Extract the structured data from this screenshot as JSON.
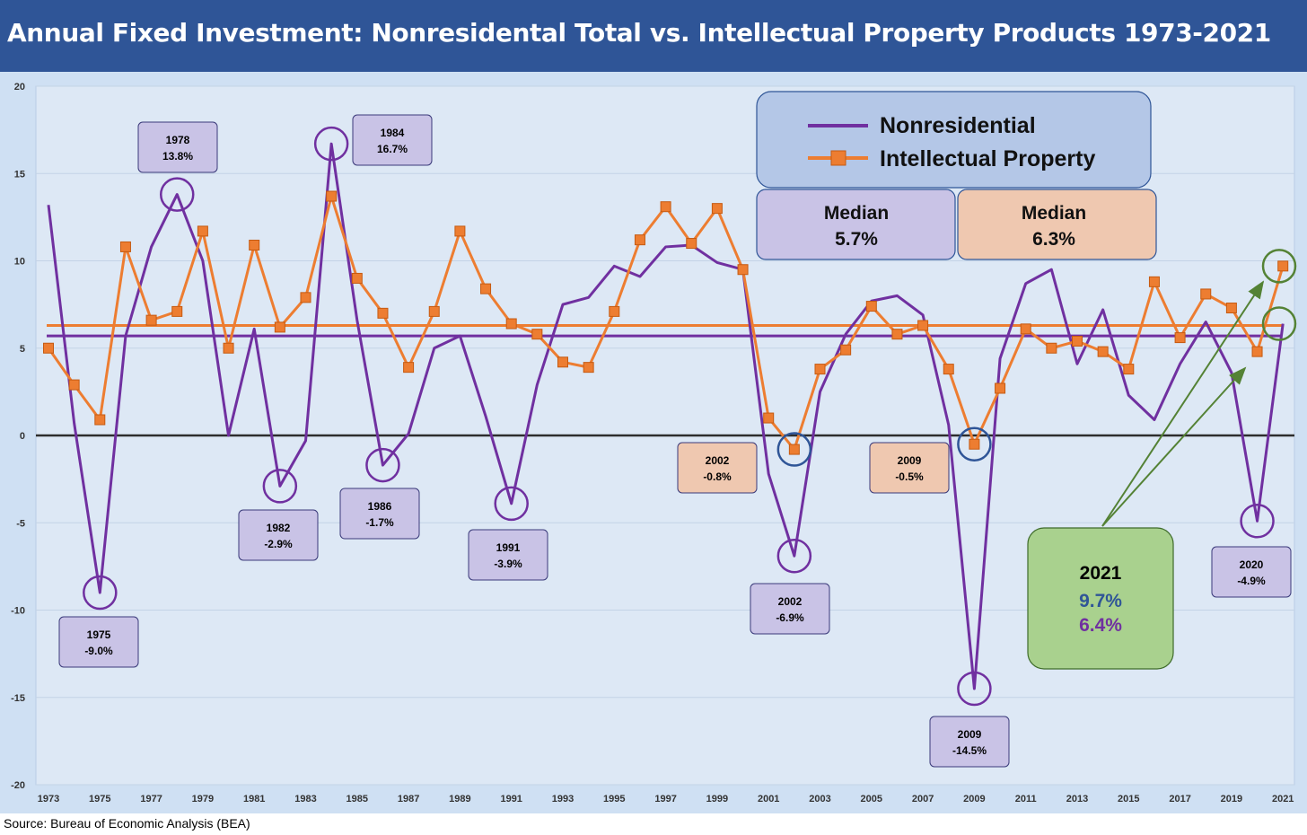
{
  "title": "Annual Fixed Investment: Nonresidental Total vs. Intellectual Property Products 1973-2021",
  "source": "Source: Bureau of Economic Analysis (BEA)",
  "chart_data": {
    "type": "line",
    "title": "Annual Fixed Investment: Nonresidental Total vs. Intellectual Property Products 1973-2021",
    "xlabel": "",
    "ylabel": "",
    "x": [
      1973,
      1974,
      1975,
      1976,
      1977,
      1978,
      1979,
      1980,
      1981,
      1982,
      1983,
      1984,
      1985,
      1986,
      1987,
      1988,
      1989,
      1990,
      1991,
      1992,
      1993,
      1994,
      1995,
      1996,
      1997,
      1998,
      1999,
      2000,
      2001,
      2002,
      2003,
      2004,
      2005,
      2006,
      2007,
      2008,
      2009,
      2010,
      2011,
      2012,
      2013,
      2014,
      2015,
      2016,
      2017,
      2018,
      2019,
      2020,
      2021
    ],
    "x_tick_labels": [
      "1973",
      "1975",
      "1977",
      "1979",
      "1981",
      "1983",
      "1985",
      "1987",
      "1989",
      "1991",
      "1993",
      "1995",
      "1997",
      "1999",
      "2001",
      "2003",
      "2005",
      "2007",
      "2009",
      "2011",
      "2013",
      "2015",
      "2017",
      "2019",
      "2021"
    ],
    "ylim": [
      -20,
      20
    ],
    "y_ticks": [
      -20,
      -15,
      -10,
      -5,
      0,
      5,
      10,
      15,
      20
    ],
    "y_tick_labels": [
      "-20",
      "-15",
      "-10",
      "-5",
      "0",
      "5",
      "10",
      "15",
      "20"
    ],
    "grid": true,
    "series": [
      {
        "name": "Nonresidential",
        "color": "#7030a0",
        "marker": "none",
        "values": [
          13.2,
          0.7,
          -9.0,
          5.7,
          10.8,
          13.8,
          10.0,
          0.0,
          6.1,
          -2.9,
          -0.3,
          16.7,
          6.6,
          -1.7,
          0.1,
          5.0,
          5.7,
          1.1,
          -3.9,
          2.9,
          7.5,
          7.9,
          9.7,
          9.1,
          10.8,
          10.9,
          9.9,
          9.5,
          -2.2,
          -6.9,
          2.5,
          5.8,
          7.7,
          8.0,
          6.9,
          0.6,
          -14.5,
          4.4,
          8.7,
          9.5,
          4.1,
          7.2,
          2.3,
          0.9,
          4.1,
          6.5,
          3.6,
          -4.9,
          6.4
        ]
      },
      {
        "name": "Intellectual Property",
        "color": "#ed7d31",
        "marker": "square",
        "values": [
          5.0,
          2.9,
          0.9,
          10.8,
          6.6,
          7.1,
          11.7,
          5.0,
          10.9,
          6.2,
          7.9,
          13.7,
          9.0,
          7.0,
          3.9,
          7.1,
          11.7,
          8.4,
          6.4,
          5.8,
          4.2,
          3.9,
          7.1,
          11.2,
          13.1,
          11.0,
          13.0,
          9.5,
          1.0,
          -0.8,
          3.8,
          4.9,
          7.4,
          5.8,
          6.3,
          3.8,
          -0.5,
          2.7,
          6.1,
          5.0,
          5.4,
          4.8,
          3.8,
          8.8,
          5.6,
          8.1,
          7.3,
          4.8,
          9.7
        ]
      }
    ],
    "median_lines": [
      {
        "name": "Nonresidential median",
        "value": 5.7,
        "color": "#7030a0"
      },
      {
        "name": "Intellectual Property median",
        "value": 6.3,
        "color": "#ed7d31"
      }
    ],
    "legend": {
      "position": "top-right",
      "entries": [
        "Nonresidential",
        "Intellectual Property"
      ]
    },
    "median_boxes": [
      {
        "label": "Median",
        "value": "5.7%",
        "color": "#c9c3e6"
      },
      {
        "label": "Median",
        "value": "6.3%",
        "color": "#efc8b0"
      }
    ],
    "annotations": [
      {
        "year": "1975",
        "value": "-9.0%",
        "series": "Nonresidential",
        "x": 1975,
        "y": -9.0
      },
      {
        "year": "1978",
        "value": "13.8%",
        "series": "Nonresidential",
        "x": 1978,
        "y": 13.8
      },
      {
        "year": "1982",
        "value": "-2.9%",
        "series": "Nonresidential",
        "x": 1982,
        "y": -2.9
      },
      {
        "year": "1984",
        "value": "16.7%",
        "series": "Nonresidential",
        "x": 1984,
        "y": 16.7
      },
      {
        "year": "1986",
        "value": "-1.7%",
        "series": "Nonresidential",
        "x": 1986,
        "y": -1.7
      },
      {
        "year": "1991",
        "value": "-3.9%",
        "series": "Nonresidential",
        "x": 1991,
        "y": -3.9
      },
      {
        "year": "2002",
        "value": "-6.9%",
        "series": "Nonresidential",
        "x": 2002,
        "y": -6.9
      },
      {
        "year": "2009",
        "value": "-14.5%",
        "series": "Nonresidential",
        "x": 2009,
        "y": -14.5
      },
      {
        "year": "2020",
        "value": "-4.9%",
        "series": "Nonresidential",
        "x": 2020,
        "y": -4.9
      },
      {
        "year": "2002",
        "value": "-0.8%",
        "series": "Intellectual Property",
        "x": 2002,
        "y": -0.8
      },
      {
        "year": "2009",
        "value": "-0.5%",
        "series": "Intellectual Property",
        "x": 2009,
        "y": -0.5
      }
    ],
    "callout_2021": {
      "year": "2021",
      "ipp": "9.7%",
      "nonres": "6.4%",
      "color": "#a9d18e"
    }
  }
}
